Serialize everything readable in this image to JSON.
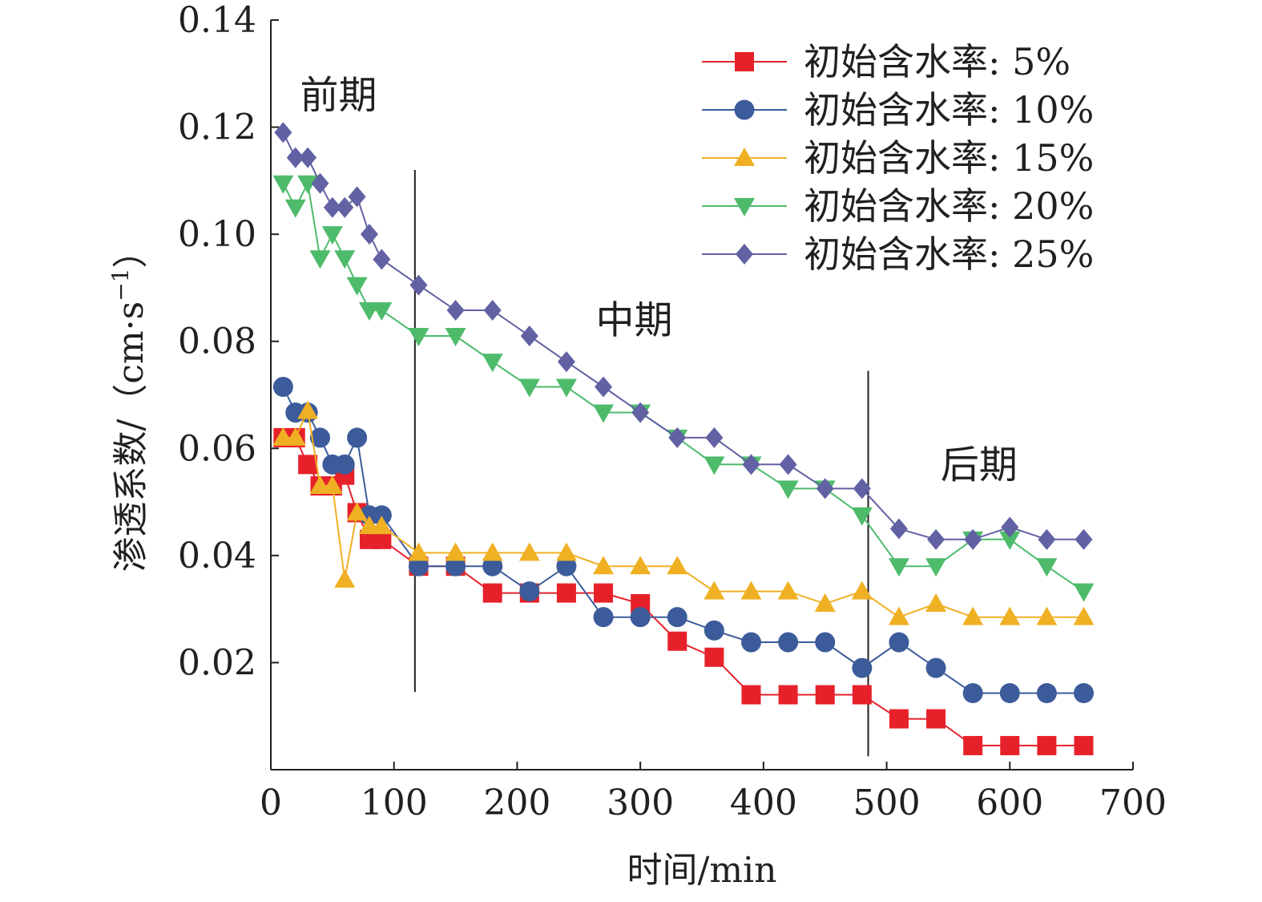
{
  "chart_data": {
    "type": "line",
    "title": "",
    "xlabel": "时间/min",
    "ylabel_main": "渗透系数/（cm·s",
    "ylabel_sup": "−1",
    "ylabel_close": "）",
    "xlim": [
      0,
      700
    ],
    "ylim": [
      0,
      0.14
    ],
    "xticks": [
      0,
      100,
      200,
      300,
      400,
      500,
      600,
      700
    ],
    "xtick_labels": [
      "0",
      "100",
      "200",
      "300",
      "400",
      "500",
      "600",
      "700"
    ],
    "yticks": [
      0.02,
      0.04,
      0.06,
      0.08,
      0.1,
      0.12,
      0.14
    ],
    "ytick_labels": [
      "0.02",
      "0.04",
      "0.06",
      "0.08",
      "0.10",
      "0.12",
      "0.14"
    ],
    "grid": false,
    "legend_position": "top-right",
    "dividers_x": [
      117,
      485
    ],
    "annotations": [
      {
        "text": "前期",
        "x": 55,
        "y": 0.1235
      },
      {
        "text": "中期",
        "x": 295,
        "y": 0.0815
      },
      {
        "text": "后期",
        "x": 575,
        "y": 0.0545
      }
    ],
    "series": [
      {
        "name": "初始含水率: 5%",
        "color": "#e6212a",
        "marker": "square",
        "x": [
          10,
          20,
          30,
          40,
          50,
          60,
          70,
          80,
          90,
          120,
          150,
          180,
          210,
          240,
          270,
          300,
          330,
          360,
          390,
          420,
          450,
          480,
          510,
          540,
          570,
          600,
          630,
          660
        ],
        "y": [
          0.062,
          0.062,
          0.057,
          0.053,
          0.053,
          0.055,
          0.048,
          0.043,
          0.043,
          0.038,
          0.038,
          0.033,
          0.033,
          0.033,
          0.033,
          0.031,
          0.024,
          0.021,
          0.014,
          0.014,
          0.014,
          0.014,
          0.0095,
          0.0095,
          0.0045,
          0.0045,
          0.0045,
          0.0045
        ]
      },
      {
        "name": "初始含水率: 10%",
        "color": "#3c5b9a",
        "marker": "circle",
        "x": [
          10,
          20,
          30,
          40,
          50,
          60,
          70,
          80,
          90,
          120,
          150,
          180,
          210,
          240,
          270,
          300,
          330,
          360,
          390,
          420,
          450,
          480,
          510,
          540,
          570,
          600,
          630,
          660
        ],
        "y": [
          0.0715,
          0.0667,
          0.0667,
          0.062,
          0.057,
          0.057,
          0.062,
          0.0475,
          0.0475,
          0.038,
          0.038,
          0.038,
          0.0333,
          0.038,
          0.0285,
          0.0285,
          0.0285,
          0.026,
          0.0238,
          0.0238,
          0.0238,
          0.019,
          0.0238,
          0.019,
          0.0143,
          0.0143,
          0.0143,
          0.0143
        ]
      },
      {
        "name": "初始含水率: 15%",
        "color": "#f0b023",
        "marker": "triangle-up",
        "x": [
          10,
          20,
          30,
          40,
          50,
          60,
          70,
          80,
          90,
          120,
          150,
          180,
          210,
          240,
          270,
          300,
          330,
          360,
          390,
          420,
          450,
          480,
          510,
          540,
          570,
          600,
          630,
          660
        ],
        "y": [
          0.062,
          0.062,
          0.067,
          0.053,
          0.053,
          0.0355,
          0.048,
          0.0455,
          0.0455,
          0.0405,
          0.0405,
          0.0405,
          0.0405,
          0.0405,
          0.038,
          0.038,
          0.038,
          0.0333,
          0.0333,
          0.0333,
          0.031,
          0.0333,
          0.0285,
          0.031,
          0.0285,
          0.0285,
          0.0285,
          0.0285
        ]
      },
      {
        "name": "初始含水率: 20%",
        "color": "#4ebb6b",
        "marker": "triangle-down",
        "x": [
          10,
          20,
          30,
          40,
          50,
          60,
          70,
          80,
          90,
          120,
          150,
          180,
          210,
          240,
          270,
          300,
          330,
          360,
          390,
          420,
          450,
          480,
          510,
          540,
          570,
          600,
          630,
          660
        ],
        "y": [
          0.1095,
          0.105,
          0.1095,
          0.0955,
          0.1,
          0.0955,
          0.0905,
          0.0858,
          0.0858,
          0.081,
          0.081,
          0.0762,
          0.0715,
          0.0715,
          0.0667,
          0.0667,
          0.062,
          0.057,
          0.057,
          0.0525,
          0.0525,
          0.0475,
          0.038,
          0.038,
          0.043,
          0.043,
          0.038,
          0.0333
        ]
      },
      {
        "name": "初始含水率: 25%",
        "color": "#6161a3",
        "marker": "diamond",
        "x": [
          10,
          20,
          30,
          40,
          50,
          60,
          70,
          80,
          90,
          120,
          150,
          180,
          210,
          240,
          270,
          300,
          330,
          360,
          390,
          420,
          450,
          480,
          510,
          540,
          570,
          600,
          630,
          660
        ],
        "y": [
          0.119,
          0.1143,
          0.1143,
          0.1095,
          0.105,
          0.105,
          0.107,
          0.1,
          0.0953,
          0.0905,
          0.0858,
          0.0858,
          0.081,
          0.0762,
          0.0715,
          0.0667,
          0.062,
          0.062,
          0.057,
          0.057,
          0.0525,
          0.0525,
          0.045,
          0.043,
          0.043,
          0.0453,
          0.043,
          0.043
        ]
      }
    ]
  }
}
